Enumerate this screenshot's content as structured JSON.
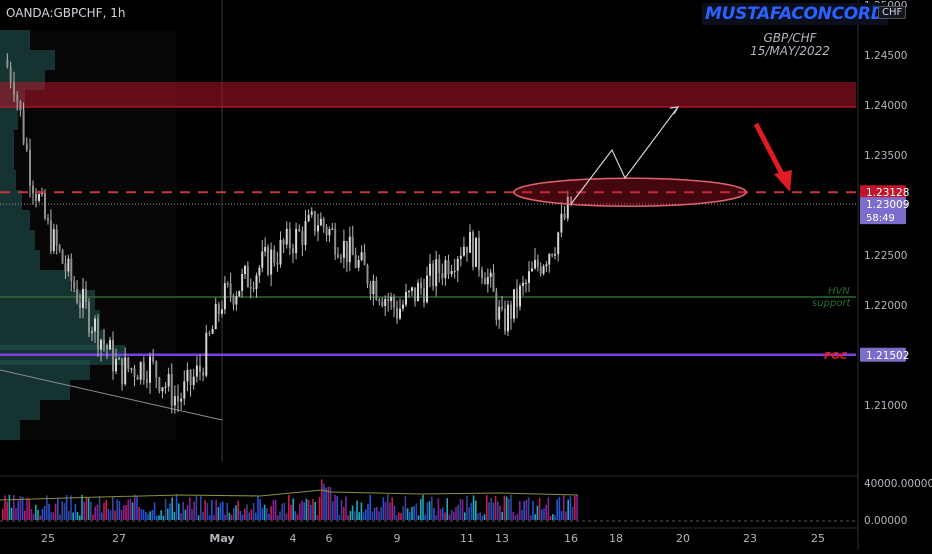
{
  "symbol": "OANDA:GBPCHF, 1h",
  "brand": "MUSTAFACONCORD",
  "title_lines": [
    "GBP/CHF",
    "15/MAY/2022"
  ],
  "currency_badge": "CHF",
  "colors": {
    "background": "#000000",
    "candle": "#b7b7b7",
    "resistance_zone": "#c2152b",
    "dashed_level": "#c3363f",
    "hvn_line": "#2e6b2e",
    "poc_line": "#7b3fe4",
    "volume_profile": "#2b7f77",
    "arrow_red": "#e01b24",
    "price_badge_red": "#c2152b",
    "price_badge_purple": "#7d6ccc"
  },
  "annotations": {
    "hvn_label": "HVN",
    "support_label": "support",
    "poc_label": "POC"
  },
  "price_badges": {
    "dashed": "1.23128",
    "current": "1.23009",
    "countdown": "58:49",
    "poc": "1.21502"
  },
  "chart_data": {
    "type": "candlestick",
    "timeframe": "1h",
    "x_tick_labels": [
      "25",
      "27",
      "May",
      "4",
      "6",
      "9",
      "11",
      "13",
      "16",
      "18",
      "20",
      "23",
      "25"
    ],
    "y_tick_labels": [
      "1.21000",
      "1.21500",
      "1.22000",
      "1.22500",
      "1.23000",
      "1.23500",
      "1.24000",
      "1.24500",
      "1.25000"
    ],
    "ylim": [
      1.2035,
      1.2505
    ],
    "levels": {
      "resistance_zone": [
        1.2398,
        1.2423
      ],
      "dashed_resistance": 1.23128,
      "hvn_support": 1.2208,
      "poc": 1.21502
    },
    "price_path": [
      [
        "Apr 22",
        1.2445
      ],
      [
        "Apr 23",
        1.2425
      ],
      [
        "Apr 24",
        1.2335
      ],
      [
        "Apr 25",
        1.2275
      ],
      [
        "Apr 26",
        1.2205
      ],
      [
        "Apr 27",
        1.2135
      ],
      [
        "Apr 28",
        1.214
      ],
      [
        "Apr 29",
        1.2105
      ],
      [
        "Apr 30",
        1.2135
      ],
      [
        "May 1",
        1.2205
      ],
      [
        "May 2",
        1.2225
      ],
      [
        "May 3",
        1.2245
      ],
      [
        "May 4",
        1.2265
      ],
      [
        "May 5",
        1.2285
      ],
      [
        "May 6",
        1.2265
      ],
      [
        "May 9",
        1.2195
      ],
      [
        "May 10",
        1.2225
      ],
      [
        "May 11",
        1.2265
      ],
      [
        "May 12",
        1.2235
      ],
      [
        "May 13",
        1.218
      ],
      [
        "May 14",
        1.2235
      ],
      [
        "May 15",
        1.2265
      ],
      [
        "May 16",
        1.23009
      ]
    ],
    "projection": [
      [
        "May 16",
        1.2301
      ],
      [
        "May 17",
        1.2355
      ],
      [
        "May 18",
        1.2327
      ],
      [
        "May 20",
        1.2398
      ]
    ],
    "volume_axis_labels": [
      "40000.00000",
      "0.00000"
    ]
  }
}
